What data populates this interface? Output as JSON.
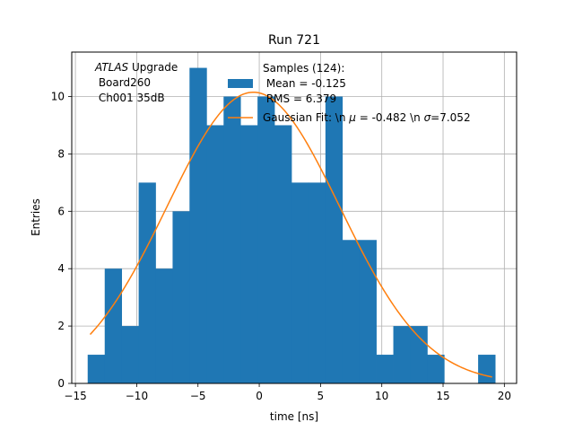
{
  "chart_data": {
    "type": "histogram",
    "title": "Run 721",
    "xlabel": "time [ns]",
    "ylabel": "Entries",
    "xlim": [
      -15.3,
      21.0
    ],
    "ylim": [
      0,
      11.55
    ],
    "grid": true,
    "x_ticks": [
      -15,
      -10,
      -5,
      0,
      5,
      10,
      15,
      20
    ],
    "y_ticks": [
      0,
      2,
      4,
      6,
      8,
      10
    ],
    "bin_edges": [
      -14.0,
      -12.61,
      -11.23,
      -9.84,
      -8.46,
      -7.07,
      -5.69,
      -4.3,
      -2.91,
      -1.53,
      -0.14,
      1.24,
      2.63,
      4.01,
      5.4,
      6.78,
      8.17,
      9.55,
      10.94,
      12.32,
      13.71,
      15.09,
      16.48,
      17.86,
      19.25
    ],
    "counts": [
      1,
      4,
      2,
      7,
      4,
      6,
      11,
      9,
      10,
      9,
      10,
      9,
      7,
      7,
      10,
      5,
      5,
      1,
      2,
      2,
      1,
      0,
      0,
      1
    ],
    "fit": {
      "type": "gaussian",
      "mean": -0.482,
      "sigma": 7.052,
      "amplitude": 10.15,
      "x_range": [
        -13.8,
        19.0
      ]
    },
    "colors": {
      "bars": "#1f77b4",
      "fit": "#ff7f0e",
      "grid": "#b0b0b0"
    },
    "annotation": {
      "lines": [
        "ATLAS Upgrade",
        " Board260",
        " Ch001 35dB"
      ],
      "italic_word": "ATLAS",
      "rest_of_first_line": " Upgrade"
    },
    "legend": {
      "placement": "top-right",
      "entries": [
        {
          "type": "bar",
          "label_lines": [
            "Samples (124):",
            " Mean = -0.125",
            " RMS = 6.379"
          ]
        },
        {
          "type": "line",
          "label_parts": [
            "Gaussian Fit: \\n ",
            "μ",
            " = -0.482 \\n ",
            "σ",
            "=7.052"
          ]
        }
      ]
    }
  }
}
